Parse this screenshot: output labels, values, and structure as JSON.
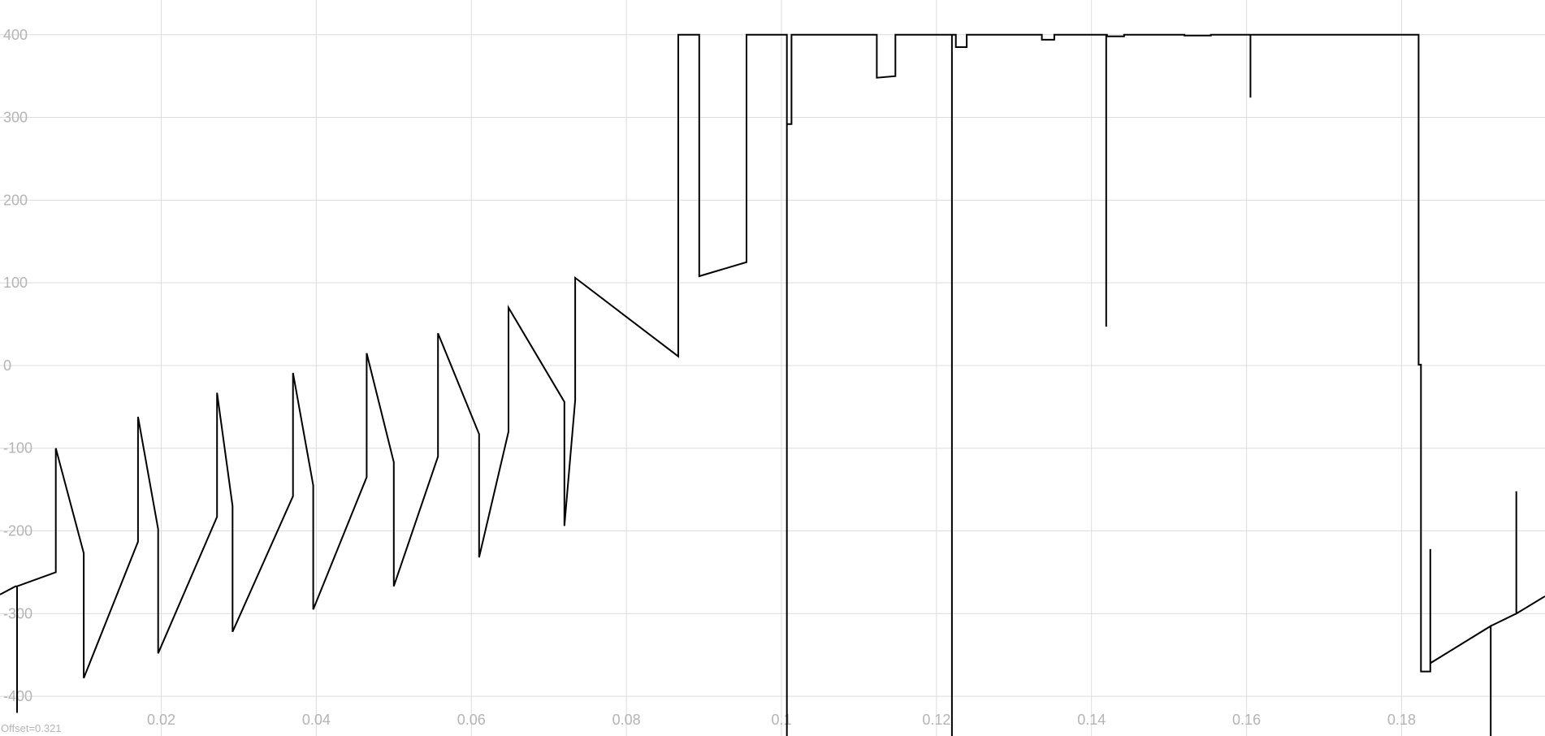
{
  "offset_label": "Offset=0.321",
  "chart_data": {
    "type": "line",
    "title": "",
    "xlabel": "",
    "ylabel": "",
    "xlim": [
      -0.0008,
      0.1985
    ],
    "ylim": [
      -448,
      442
    ],
    "grid": true,
    "legend": "none",
    "x_ticks": [
      0.02,
      0.04,
      0.06,
      0.08,
      0.1,
      0.12,
      0.14,
      0.16,
      0.18
    ],
    "x_tick_labels": [
      "0.02",
      "0.04",
      "0.06",
      "0.08",
      "0.1",
      "0.12",
      "0.14",
      "0.16",
      "0.18"
    ],
    "y_ticks": [
      -400,
      -300,
      -200,
      -100,
      0,
      100,
      200,
      300,
      400
    ],
    "y_tick_labels": [
      "-400",
      "-300",
      "-200",
      "-100",
      "0",
      "100",
      "200",
      "300",
      "400"
    ],
    "colors": {
      "line": "#000000",
      "grid": "#dcdcdc",
      "text": "#b4b4b4"
    },
    "series": [
      {
        "x": [
          -0.0008,
          0.0012,
          0.0014,
          0.0014,
          0.0014,
          0.0064,
          0.0064,
          0.0064,
          0.01,
          0.01,
          0.01,
          0.017,
          0.017,
          0.017,
          0.0196,
          0.0196,
          0.0196,
          0.0272,
          0.0272,
          0.0272,
          0.0292,
          0.0292,
          0.0292,
          0.037,
          0.037,
          0.037,
          0.0396,
          0.0396,
          0.0396,
          0.0465,
          0.0465,
          0.0465,
          0.05,
          0.05,
          0.05,
          0.0557,
          0.0557,
          0.0557,
          0.061,
          0.061,
          0.061,
          0.0648,
          0.0648,
          0.0648,
          0.072,
          0.072,
          0.072,
          0.0734,
          0.0734,
          0.0734,
          0.0867,
          0.0867,
          0.0894,
          0.0894,
          0.0955,
          0.0955,
          0.1007,
          0.1007,
          0.1007,
          0.1007,
          0.1013,
          0.1013,
          0.105,
          0.105,
          0.1123,
          0.1123,
          0.1147,
          0.1147,
          0.122,
          0.122,
          0.122,
          0.1225,
          0.1225,
          0.1239,
          0.1239,
          0.1336,
          0.1336,
          0.1352,
          0.1352,
          0.1419,
          0.1419,
          0.1419,
          0.142,
          0.142,
          0.1442,
          0.1442,
          0.152,
          0.152,
          0.1554,
          0.1554,
          0.1605,
          0.1605,
          0.1605,
          0.1614,
          0.1614,
          0.171,
          0.171,
          0.1822,
          0.1822,
          0.1825,
          0.1825,
          0.1825,
          0.1837,
          0.1837,
          0.1837,
          0.1915,
          0.1915,
          0.1915,
          0.1948,
          0.1948,
          0.1948,
          0.1985
        ],
        "y": [
          -277,
          -267,
          -267,
          -420,
          -267,
          -250,
          -250,
          -100,
          -227,
          -227,
          -378,
          -213,
          -213,
          -62,
          -198,
          -198,
          -348,
          -183,
          -183,
          -33,
          -170,
          -170,
          -322,
          -158,
          -158,
          -9,
          -145,
          -145,
          -295,
          -135,
          -135,
          15,
          -117,
          -117,
          -267,
          -110,
          -110,
          39,
          -83,
          -83,
          -232,
          -80,
          -80,
          70,
          -44,
          -44,
          -194,
          -42,
          -42,
          106,
          11,
          400,
          400,
          108,
          125,
          400,
          400,
          -448,
          400,
          292,
          292,
          400,
          400,
          400,
          400,
          348,
          350,
          400,
          400,
          -448,
          400,
          400,
          385,
          385,
          400,
          400,
          394,
          394,
          400,
          400,
          47,
          400,
          400,
          398,
          398,
          400,
          400,
          399,
          399,
          400,
          400,
          324,
          400,
          400,
          400,
          400,
          400,
          400,
          1,
          1,
          -370,
          -370,
          -370,
          -222,
          -360,
          -315,
          -448,
          -315,
          -300,
          -152,
          -300,
          -279
        ]
      }
    ]
  }
}
